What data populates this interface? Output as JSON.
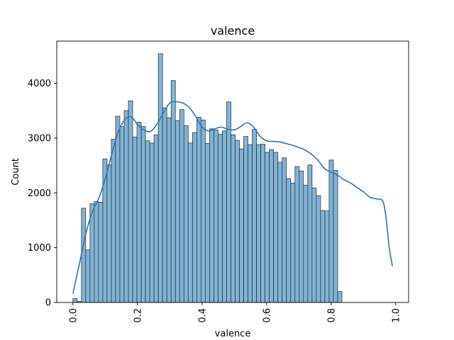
{
  "chart_data": {
    "type": "bar",
    "title": "valence",
    "xlabel": "valence",
    "ylabel": "Count",
    "xlim": [
      -0.05,
      1.04
    ],
    "ylim": [
      0,
      4770
    ],
    "xticks": [
      0.0,
      0.2,
      0.4,
      0.6,
      0.8,
      1.0
    ],
    "xtick_labels": [
      "0.0",
      "0.2",
      "0.4",
      "0.6",
      "0.8",
      "1.0"
    ],
    "yticks": [
      0,
      1000,
      2000,
      3000,
      4000
    ],
    "ytick_labels": [
      "0",
      "1000",
      "2000",
      "3000",
      "4000"
    ],
    "grid": false,
    "bar_color": "#82b3d4",
    "edge_color": "#1b2a38",
    "kde_color": "#2a78b5",
    "bins": {
      "start": 0.0,
      "width": 0.01323,
      "values": [
        70,
        20,
        1720,
        960,
        1800,
        1840,
        1830,
        2620,
        2510,
        2980,
        3400,
        3210,
        3500,
        3680,
        3020,
        3290,
        3210,
        2950,
        2910,
        3060,
        4540,
        3550,
        3370,
        4050,
        3320,
        3520,
        3230,
        2910,
        3100,
        3380,
        3330,
        2900,
        3170,
        3150,
        3070,
        3130,
        3660,
        3060,
        2960,
        2800,
        3030,
        2880,
        3160,
        2880,
        2890,
        2740,
        2790,
        2740,
        2560,
        2640,
        2260,
        2180,
        2480,
        2400,
        2140,
        2510,
        2090,
        1950,
        1680,
        1670,
        2600,
        2410,
        200
      ]
    },
    "kde": {
      "x": [
        0.0,
        0.02,
        0.04,
        0.06,
        0.08,
        0.1,
        0.12,
        0.14,
        0.16,
        0.18,
        0.2,
        0.22,
        0.24,
        0.26,
        0.28,
        0.3,
        0.32,
        0.34,
        0.36,
        0.38,
        0.4,
        0.42,
        0.44,
        0.46,
        0.48,
        0.5,
        0.52,
        0.54,
        0.56,
        0.58,
        0.6,
        0.62,
        0.64,
        0.66,
        0.68,
        0.7,
        0.72,
        0.74,
        0.76,
        0.78,
        0.8,
        0.82,
        0.84,
        0.86,
        0.88,
        0.9,
        0.92,
        0.94,
        0.96,
        0.97,
        0.98,
        0.99
      ],
      "y": [
        160,
        700,
        1250,
        1650,
        1900,
        2250,
        2700,
        3100,
        3330,
        3390,
        3250,
        3150,
        3120,
        3250,
        3450,
        3640,
        3660,
        3640,
        3560,
        3400,
        3200,
        3130,
        3170,
        3200,
        3160,
        3150,
        3210,
        3280,
        3200,
        3030,
        2950,
        2940,
        2930,
        2900,
        2870,
        2830,
        2780,
        2700,
        2590,
        2440,
        2380,
        2320,
        2240,
        2180,
        2100,
        2020,
        1920,
        1890,
        1850,
        1550,
        1000,
        660
      ]
    }
  }
}
